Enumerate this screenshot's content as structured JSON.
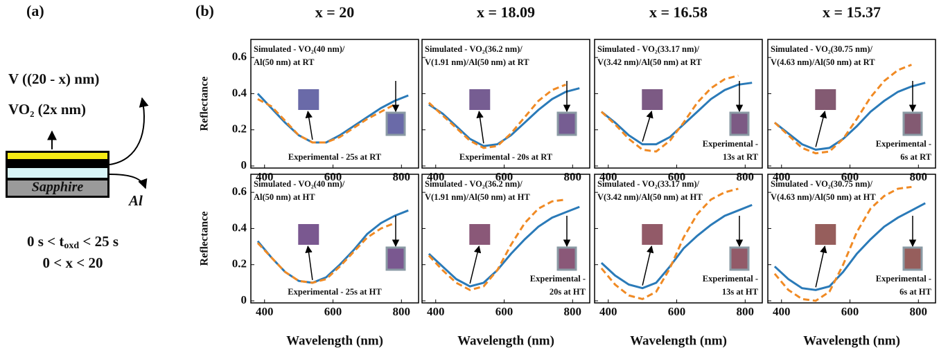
{
  "panel_labels": [
    "(a)",
    "(b)"
  ],
  "panel_a": {
    "top_layer_label": "V ((20 - x) nm)",
    "oxide_label": "VO₂ (2x nm)",
    "substrate_label": "Sapphire",
    "metal_label": "Al",
    "time_range": [
      "0 s < t",
      "oxd",
      " < 25 s"
    ],
    "x_range": "0 < x < 20"
  },
  "column_titles": [
    "x = 20",
    "x = 18.09",
    "x = 16.58",
    "x = 15.37"
  ],
  "chart_data": [
    {
      "type": "line",
      "ylabel": "Reflectance",
      "xlim": [
        360,
        850
      ],
      "ylim": [
        0,
        0.7
      ],
      "xticks": [
        400,
        600,
        800
      ],
      "yticks": [
        0,
        0.2,
        0.4,
        0.6
      ],
      "ytick_labels": true,
      "swatch": "#6a6aa8",
      "simulated_label": [
        "Simulated - VO₂(40 nm)/",
        "Al(50 nm) at RT"
      ],
      "experimental_label": [
        "Experimental - 25s at RT"
      ],
      "x": [
        380,
        420,
        460,
        500,
        540,
        580,
        620,
        660,
        700,
        740,
        780,
        820
      ],
      "series": [
        {
          "color": "#2a7ab8",
          "dashed": false,
          "values": [
            0.4,
            0.32,
            0.24,
            0.17,
            0.13,
            0.13,
            0.17,
            0.22,
            0.27,
            0.32,
            0.36,
            0.39
          ]
        },
        {
          "color": "#f08a24",
          "dashed": true,
          "values": [
            0.37,
            0.33,
            0.25,
            0.17,
            0.13,
            0.13,
            0.16,
            0.21,
            0.26,
            0.3,
            0.34,
            null
          ]
        }
      ]
    },
    {
      "type": "line",
      "xlim": [
        360,
        850
      ],
      "ylim": [
        0,
        0.7
      ],
      "xticks": [
        400,
        600,
        800
      ],
      "yticks": [
        0,
        0.2,
        0.4,
        0.6
      ],
      "ytick_labels": false,
      "swatch": "#765d92",
      "simulated_label": [
        "Simulated - VO₂(36.2 nm)/",
        "V(1.91 nm)/Al(50 nm) at RT"
      ],
      "experimental_label": [
        "Experimental - 20s at RT"
      ],
      "x": [
        380,
        420,
        460,
        500,
        540,
        580,
        620,
        660,
        700,
        740,
        780,
        820
      ],
      "series": [
        {
          "color": "#2a7ab8",
          "dashed": false,
          "values": [
            0.34,
            0.29,
            0.22,
            0.15,
            0.11,
            0.12,
            0.17,
            0.24,
            0.31,
            0.37,
            0.41,
            0.43
          ]
        },
        {
          "color": "#f08a24",
          "dashed": true,
          "values": [
            0.35,
            0.28,
            0.21,
            0.14,
            0.1,
            0.11,
            0.18,
            0.27,
            0.36,
            0.42,
            0.45,
            null
          ]
        }
      ]
    },
    {
      "type": "line",
      "xlim": [
        360,
        850
      ],
      "ylim": [
        0,
        0.7
      ],
      "xticks": [
        400,
        600,
        800
      ],
      "yticks": [
        0,
        0.2,
        0.4,
        0.6
      ],
      "ytick_labels": false,
      "swatch": "#7c5a84",
      "simulated_label": [
        "Simulated - VO₂(33.17 nm)/",
        "V(3.42 nm)/Al(50 nm) at RT"
      ],
      "experimental_label": [
        "Experimental -",
        "13s at RT"
      ],
      "x": [
        380,
        420,
        460,
        500,
        540,
        580,
        620,
        660,
        700,
        740,
        780,
        820
      ],
      "series": [
        {
          "color": "#2a7ab8",
          "dashed": false,
          "values": [
            0.3,
            0.24,
            0.17,
            0.12,
            0.12,
            0.16,
            0.23,
            0.3,
            0.37,
            0.42,
            0.45,
            0.46
          ]
        },
        {
          "color": "#f08a24",
          "dashed": true,
          "values": [
            0.3,
            0.23,
            0.15,
            0.09,
            0.08,
            0.14,
            0.24,
            0.35,
            0.43,
            0.48,
            0.5,
            null
          ]
        }
      ]
    },
    {
      "type": "line",
      "xlim": [
        360,
        850
      ],
      "ylim": [
        0,
        0.7
      ],
      "xticks": [
        400,
        600,
        800
      ],
      "yticks": [
        0,
        0.2,
        0.4,
        0.6
      ],
      "ytick_labels": false,
      "swatch": "#835a72",
      "simulated_label": [
        "Simulated - VO₂(30.75 nm)/",
        "V(4.63 nm)/Al(50 nm) at RT"
      ],
      "experimental_label": [
        "Experimental -",
        "6s at RT"
      ],
      "x": [
        380,
        420,
        460,
        500,
        540,
        580,
        620,
        660,
        700,
        740,
        780,
        820
      ],
      "series": [
        {
          "color": "#2a7ab8",
          "dashed": false,
          "values": [
            0.24,
            0.18,
            0.12,
            0.09,
            0.1,
            0.15,
            0.22,
            0.3,
            0.36,
            0.41,
            0.44,
            0.46
          ]
        },
        {
          "color": "#f08a24",
          "dashed": true,
          "values": [
            0.24,
            0.17,
            0.1,
            0.07,
            0.08,
            0.15,
            0.26,
            0.38,
            0.47,
            0.53,
            0.56,
            null
          ]
        }
      ]
    },
    {
      "type": "line",
      "ylabel": "Reflectance",
      "xlabel": "Wavelength (nm)",
      "xlim": [
        360,
        850
      ],
      "ylim": [
        0,
        0.7
      ],
      "xticks": [
        400,
        600,
        800
      ],
      "yticks": [
        0,
        0.2,
        0.4,
        0.6
      ],
      "ytick_labels": true,
      "swatch": "#7a5890",
      "simulated_label": [
        "Simulated - VO₂(40 nm)/",
        "Al(50 nm) at HT"
      ],
      "experimental_label": [
        "Experimental - 25s at HT"
      ],
      "x": [
        380,
        420,
        460,
        500,
        540,
        580,
        620,
        660,
        700,
        740,
        780,
        820
      ],
      "series": [
        {
          "color": "#2a7ab8",
          "dashed": false,
          "values": [
            0.33,
            0.24,
            0.16,
            0.11,
            0.1,
            0.13,
            0.2,
            0.28,
            0.37,
            0.43,
            0.47,
            0.5
          ]
        },
        {
          "color": "#f08a24",
          "dashed": true,
          "values": [
            0.32,
            0.24,
            0.16,
            0.11,
            0.1,
            0.12,
            0.19,
            0.27,
            0.35,
            0.4,
            0.43,
            null
          ]
        }
      ]
    },
    {
      "type": "line",
      "xlabel": "Wavelength (nm)",
      "xlim": [
        360,
        850
      ],
      "ylim": [
        0,
        0.7
      ],
      "xticks": [
        400,
        600,
        800
      ],
      "yticks": [
        0,
        0.2,
        0.4,
        0.6
      ],
      "ytick_labels": false,
      "swatch": "#8a5878",
      "simulated_label": [
        "Simulated - VO₂(36.2 nm)/",
        "V(1.91 nm)/Al(50 nm) at HT"
      ],
      "experimental_label": [
        "Experimental -",
        "20s at HT"
      ],
      "x": [
        380,
        420,
        460,
        500,
        540,
        580,
        620,
        660,
        700,
        740,
        780,
        820
      ],
      "series": [
        {
          "color": "#2a7ab8",
          "dashed": false,
          "values": [
            0.26,
            0.19,
            0.12,
            0.08,
            0.1,
            0.17,
            0.26,
            0.34,
            0.41,
            0.46,
            0.49,
            0.52
          ]
        },
        {
          "color": "#f08a24",
          "dashed": true,
          "values": [
            0.25,
            0.17,
            0.1,
            0.06,
            0.08,
            0.17,
            0.31,
            0.43,
            0.51,
            0.55,
            0.56,
            null
          ]
        }
      ]
    },
    {
      "type": "line",
      "xlabel": "Wavelength (nm)",
      "xlim": [
        360,
        850
      ],
      "ylim": [
        0,
        0.7
      ],
      "xticks": [
        400,
        600,
        800
      ],
      "yticks": [
        0,
        0.2,
        0.4,
        0.6
      ],
      "ytick_labels": false,
      "swatch": "#925a68",
      "simulated_label": [
        "Simulated - VO₂(33.17 nm)/",
        "V(3.42 nm)/Al(50 nm) at HT"
      ],
      "experimental_label": [
        "Experimental -",
        "13s at HT"
      ],
      "x": [
        380,
        420,
        460,
        500,
        540,
        580,
        620,
        660,
        700,
        740,
        780,
        820
      ],
      "series": [
        {
          "color": "#2a7ab8",
          "dashed": false,
          "values": [
            0.21,
            0.14,
            0.09,
            0.07,
            0.1,
            0.19,
            0.29,
            0.36,
            0.42,
            0.47,
            0.5,
            0.53
          ]
        },
        {
          "color": "#f08a24",
          "dashed": true,
          "values": [
            0.18,
            0.09,
            0.03,
            0.01,
            0.05,
            0.18,
            0.35,
            0.48,
            0.56,
            0.6,
            0.62,
            null
          ]
        }
      ]
    },
    {
      "type": "line",
      "xlabel": "Wavelength (nm)",
      "xlim": [
        360,
        850
      ],
      "ylim": [
        0,
        0.7
      ],
      "xticks": [
        400,
        600,
        800
      ],
      "yticks": [
        0,
        0.2,
        0.4,
        0.6
      ],
      "ytick_labels": false,
      "swatch": "#965e5c",
      "simulated_label": [
        "Simulated - VO₂(30.75 nm)/",
        "V(4.63 nm)/Al(50 nm) at HT"
      ],
      "experimental_label": [
        "Experimental -",
        "6s at HT"
      ],
      "x": [
        380,
        420,
        460,
        500,
        540,
        580,
        620,
        660,
        700,
        740,
        780,
        820
      ],
      "series": [
        {
          "color": "#2a7ab8",
          "dashed": false,
          "values": [
            0.19,
            0.12,
            0.07,
            0.06,
            0.08,
            0.16,
            0.26,
            0.34,
            0.41,
            0.46,
            0.5,
            0.54
          ]
        },
        {
          "color": "#f08a24",
          "dashed": true,
          "values": [
            0.15,
            0.06,
            0.01,
            0.0,
            0.05,
            0.2,
            0.38,
            0.51,
            0.58,
            0.62,
            0.63,
            null
          ]
        }
      ]
    }
  ]
}
